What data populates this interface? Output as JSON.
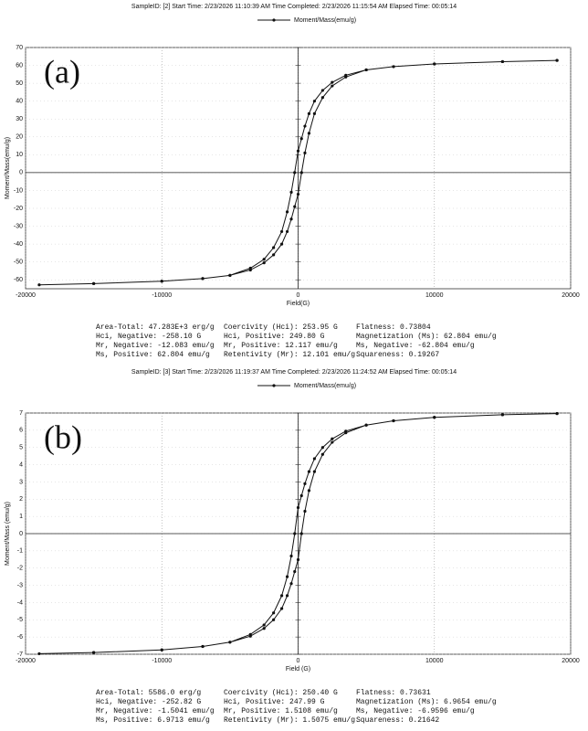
{
  "chart_data": [
    {
      "type": "line",
      "label": "(a)",
      "subtitle": "SampleID: [2]    Start Time: 2/23/2026 11:10:39 AM    Time Completed: 2/23/2026 11:15:54 AM    Elapsed Time: 00:05:14",
      "x_label": "Field(G)",
      "y_label": "Moment/Mass(emu/g)",
      "xlim": [
        -20000,
        20000
      ],
      "xticks": [
        -20000,
        -10000,
        0,
        10000,
        20000
      ],
      "ylim": [
        -65,
        70
      ],
      "yticks": [
        -60,
        -50,
        -40,
        -30,
        -20,
        -10,
        0,
        10,
        20,
        30,
        40,
        50,
        60,
        70
      ],
      "grid": true,
      "series": [
        {
          "name": "Moment/Mass(emu/g)",
          "color": "#111111",
          "x": [
            19000,
            15000,
            10000,
            7000,
            5000,
            3500,
            2500,
            1800,
            1200,
            800,
            500,
            250,
            0,
            -254,
            -500,
            -800,
            -1200,
            -1800,
            -2500,
            -3500,
            -5000,
            -7000,
            -10000,
            -15000,
            -19000,
            -15000,
            -10000,
            -7000,
            -5000,
            -3500,
            -2500,
            -1800,
            -1200,
            -800,
            -500,
            -250,
            0,
            254,
            500,
            800,
            1200,
            1800,
            2500,
            3500,
            5000,
            7000,
            10000,
            15000,
            19000
          ],
          "values": [
            62.8,
            62.1,
            60.8,
            59.3,
            57.5,
            54.5,
            50.5,
            46,
            40,
            33,
            26,
            19,
            12.1,
            0,
            -11,
            -22,
            -33,
            -42,
            -48.5,
            -53.5,
            -57.5,
            -59.3,
            -60.8,
            -62.1,
            -62.8,
            -62.1,
            -60.8,
            -59.3,
            -57.5,
            -54.5,
            -50.5,
            -46,
            -40,
            -33,
            -26,
            -19,
            -12.1,
            0,
            11,
            22,
            33,
            42,
            48.5,
            53.5,
            57.5,
            59.3,
            60.8,
            62.1,
            62.8
          ]
        }
      ],
      "stats": [
        [
          "Area-Total: 47.283E+3 erg/g",
          "Hci, Negative: -258.10 G",
          "Mr, Negative: -12.083 emu/g",
          "Ms, Positive: 62.804 emu/g"
        ],
        [
          "Coercivity (Hci): 253.95 G",
          "Hci, Positive: 249.80 G",
          "Mr, Positive: 12.117 emu/g",
          "Retentivity (Mr): 12.101 emu/g"
        ],
        [
          "Flatness: 0.73804",
          "Magnetization (Ms): 62.804 emu/g",
          "Ms, Negative: -62.804 emu/g",
          "Squareness: 0.19267"
        ]
      ]
    },
    {
      "type": "line",
      "label": "(b)",
      "subtitle": "SampleID: [3]    Start Time: 2/23/2026 11:19:37 AM    Time Completed: 2/23/2026 11:24:52 AM    Elapsed Time: 00:05:14",
      "x_label": "Field (G)",
      "y_label": "Moment/Mass (emu/g)",
      "xlim": [
        -20000,
        20000
      ],
      "xticks": [
        -20000,
        -10000,
        0,
        10000,
        20000
      ],
      "ylim": [
        -7,
        7
      ],
      "yticks": [
        -7,
        -6,
        -5,
        -4,
        -3,
        -2,
        -1,
        0,
        1,
        2,
        3,
        4,
        5,
        6,
        7
      ],
      "grid": true,
      "series": [
        {
          "name": "Moment/Mass(emu/g)",
          "color": "#111111",
          "x": [
            19000,
            15000,
            10000,
            7000,
            5000,
            3500,
            2500,
            1800,
            1200,
            800,
            500,
            250,
            0,
            -250,
            -500,
            -800,
            -1200,
            -1800,
            -2500,
            -3500,
            -5000,
            -7000,
            -10000,
            -15000,
            -19000,
            -15000,
            -10000,
            -7000,
            -5000,
            -3500,
            -2500,
            -1800,
            -1200,
            -800,
            -500,
            -250,
            0,
            250,
            500,
            800,
            1200,
            1800,
            2500,
            3500,
            5000,
            7000,
            10000,
            15000,
            19000
          ],
          "values": [
            6.97,
            6.9,
            6.75,
            6.55,
            6.3,
            5.95,
            5.5,
            5.0,
            4.35,
            3.6,
            2.9,
            2.2,
            1.51,
            0,
            -1.3,
            -2.5,
            -3.6,
            -4.6,
            -5.3,
            -5.85,
            -6.3,
            -6.55,
            -6.75,
            -6.9,
            -6.97,
            -6.9,
            -6.75,
            -6.55,
            -6.3,
            -5.95,
            -5.5,
            -5.0,
            -4.35,
            -3.6,
            -2.9,
            -2.2,
            -1.51,
            0,
            1.3,
            2.5,
            3.6,
            4.6,
            5.3,
            5.85,
            6.3,
            6.55,
            6.75,
            6.9,
            6.97
          ]
        }
      ],
      "stats": [
        [
          "Area-Total: 5586.0 erg/g",
          "Hci, Negative: -252.82 G",
          "Mr, Negative: -1.5041 emu/g",
          "Ms, Positive: 6.9713 emu/g"
        ],
        [
          "Coercivity (Hci): 250.40 G",
          "Hci, Positive: 247.99 G",
          "Mr, Positive: 1.5108 emu/g",
          "Retentivity (Mr): 1.5075 emu/g"
        ],
        [
          "Flatness: 0.73631",
          "Magnetization (Ms): 6.9654 emu/g",
          "Ms, Negative: -6.9596 emu/g",
          "Squareness: 0.21642"
        ]
      ]
    }
  ]
}
